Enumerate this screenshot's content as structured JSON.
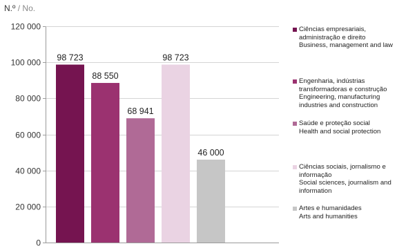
{
  "unit_label": {
    "pt": "N.º",
    "separator": " / ",
    "en": "No."
  },
  "chart_data": {
    "type": "bar",
    "categories": [
      "Ciências empresariais, administração e direito / Business, management and law",
      "Engenharia, indústrias transformadoras e construção / Engineering, manufacturing industries and construction",
      "Saúde e proteção social / Health and social protection",
      "Ciências sociais, jornalismo e informação / Social sciences, journalism and information",
      "Artes e humanidades / Arts and humanities"
    ],
    "values": [
      98723,
      88550,
      68941,
      98723,
      46000
    ],
    "value_labels": [
      "98 723",
      "88 550",
      "68 941",
      "98 723",
      "46 000"
    ],
    "colors": [
      "#751450",
      "#9b3270",
      "#b06a96",
      "#ead3e3",
      "#c6c6c6"
    ],
    "ylim": [
      0,
      120000
    ],
    "yticks": [
      0,
      20000,
      40000,
      60000,
      80000,
      100000,
      120000
    ],
    "ytick_labels": [
      "0",
      "20 000",
      "40 000",
      "60 000",
      "80 000",
      "100 000",
      "120 000"
    ],
    "grid": true,
    "legend_position": "right"
  },
  "legend": [
    {
      "pt": "Ciências empresariais, administração e direito",
      "en": "Business, management and law",
      "color": "#751450"
    },
    {
      "pt": "Engenharia, indústrias transformadoras e construção",
      "en": "Engineering, manufacturing industries and construction",
      "color": "#9b3270"
    },
    {
      "pt": "Saúde e proteção social",
      "en": "Health and social protection",
      "color": "#b06a96"
    },
    {
      "pt": "Ciências sociais, jornalismo e informação",
      "en": "Social sciences, journalism and information",
      "color": "#ead3e3"
    },
    {
      "pt": "Artes e humanidades",
      "en": "Arts and humanities",
      "color": "#c6c6c6"
    }
  ]
}
